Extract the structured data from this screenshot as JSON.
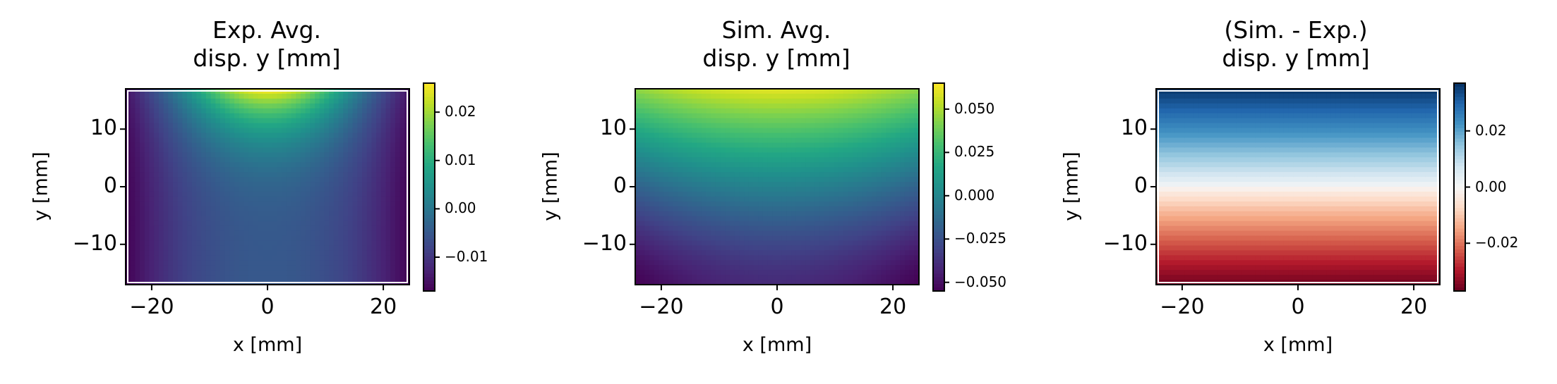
{
  "chart_data": [
    {
      "type": "heatmap",
      "title_line1": "Exp. Avg.",
      "title_line2": "disp. y [mm]",
      "xlabel": "x [mm]",
      "ylabel": "y [mm]",
      "xlim": [
        -24.5,
        24.5
      ],
      "ylim": [
        -17,
        17
      ],
      "xticks": [
        -20,
        0,
        20
      ],
      "xtick_labels": [
        "−20",
        "0",
        "20"
      ],
      "yticks": [
        -10,
        0,
        10
      ],
      "ytick_labels": [
        "−10",
        "0",
        "10"
      ],
      "colormap": "viridis",
      "clim": [
        -0.017,
        0.026
      ],
      "cbar_ticks": [
        0.02,
        0.01,
        0.0,
        -0.01
      ],
      "cbar_labels": [
        "0.02",
        "0.01",
        "0.00",
        "−0.01"
      ],
      "field_description_values": {
        "top_center": 0.026,
        "top_edge": 0.0,
        "center": -0.005,
        "bottom_corners": -0.017,
        "bottom_center": -0.005
      }
    },
    {
      "type": "heatmap",
      "title_line1": "Sim. Avg.",
      "title_line2": "disp. y [mm]",
      "xlabel": "x [mm]",
      "ylabel": "y [mm]",
      "xlim": [
        -24.5,
        24.5
      ],
      "ylim": [
        -17,
        17
      ],
      "xticks": [
        -20,
        0,
        20
      ],
      "xtick_labels": [
        "−20",
        "0",
        "20"
      ],
      "yticks": [
        -10,
        0,
        10
      ],
      "ytick_labels": [
        "−10",
        "0",
        "10"
      ],
      "colormap": "viridis",
      "clim": [
        -0.055,
        0.065
      ],
      "cbar_ticks": [
        0.05,
        0.025,
        0.0,
        -0.025,
        -0.05
      ],
      "cbar_labels": [
        "0.050",
        "0.025",
        "0.000",
        "−0.025",
        "−0.050"
      ],
      "field_description_values": {
        "top_center": 0.065,
        "bottom_corners": -0.055
      }
    },
    {
      "type": "heatmap",
      "title_line1": "(Sim. - Exp.)",
      "title_line2": "disp. y [mm]",
      "xlabel": "x [mm]",
      "ylabel": "y [mm]",
      "xlim": [
        -24.5,
        24.5
      ],
      "ylim": [
        -17,
        17
      ],
      "xticks": [
        -20,
        0,
        20
      ],
      "xtick_labels": [
        "−20",
        "0",
        "20"
      ],
      "yticks": [
        -10,
        0,
        10
      ],
      "ytick_labels": [
        "−10",
        "0",
        "10"
      ],
      "colormap": "RdBu",
      "clim": [
        -0.037,
        0.037
      ],
      "cbar_ticks": [
        0.02,
        0.0,
        -0.02
      ],
      "cbar_labels": [
        "0.02",
        "0.00",
        "−0.02"
      ],
      "field_description_values": {
        "top": 0.037,
        "middle": 0.0,
        "bottom": -0.037
      }
    }
  ]
}
